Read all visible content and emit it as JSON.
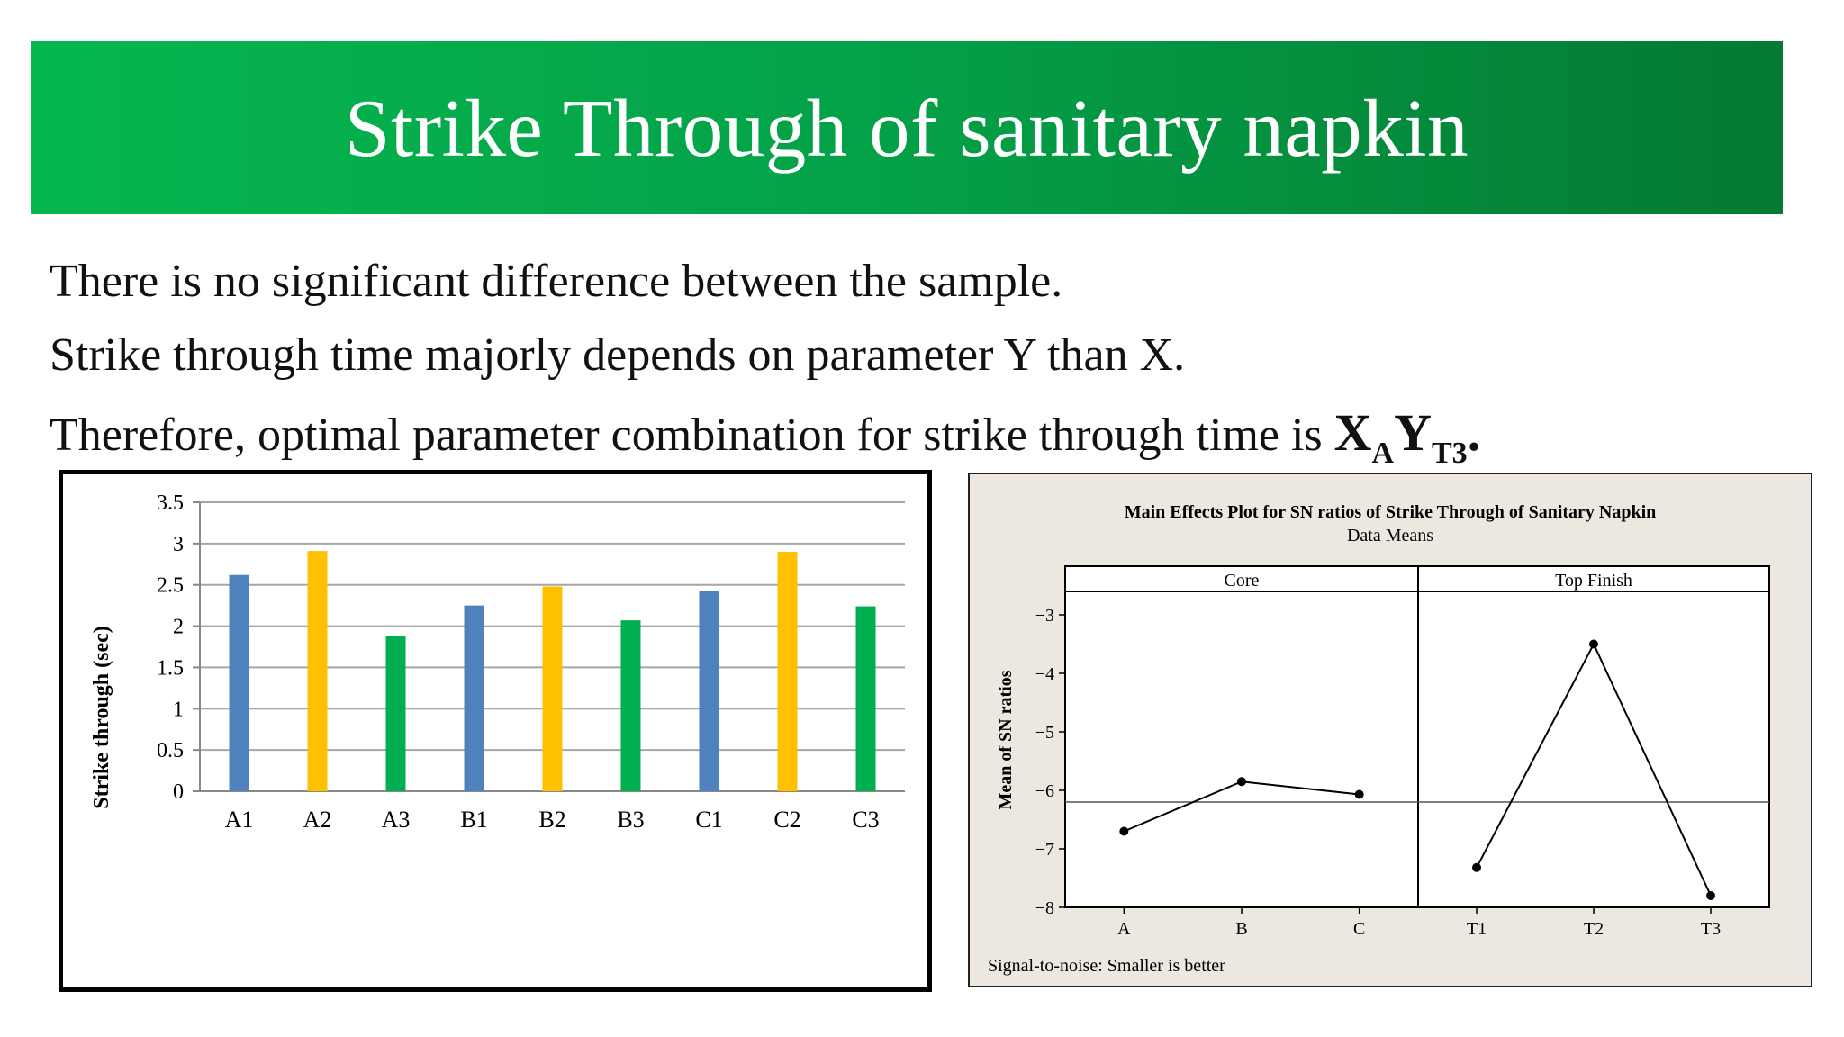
{
  "slide": {
    "title": "Strike Through of sanitary napkin",
    "lines": [
      "There is no significant difference between the sample.",
      "Strike through time majorly depends on parameter Y than X.",
      "Therefore, optimal parameter combination for strike through time  is "
    ],
    "combo": {
      "x": "X",
      "x_sub": "A",
      "y": "Y",
      "y_sub": "T3",
      "end": "."
    }
  },
  "colors": {
    "title_start": "#06b74f",
    "title_end": "#047a33",
    "blue": "#4f81bd",
    "yellow": "#ffc000",
    "green": "#00b050",
    "panel_bg": "#ece8e0"
  },
  "chart_data": [
    {
      "type": "bar",
      "title": "",
      "ylabel": "Strike through (sec)",
      "xlabel": "",
      "categories": [
        "A1",
        "A2",
        "A3",
        "B1",
        "B2",
        "B3",
        "C1",
        "C2",
        "C3"
      ],
      "values": [
        2.62,
        2.91,
        1.88,
        2.25,
        2.48,
        2.07,
        2.43,
        2.9,
        2.24
      ],
      "bar_colors": [
        "#4f81bd",
        "#ffc000",
        "#00b050",
        "#4f81bd",
        "#ffc000",
        "#00b050",
        "#4f81bd",
        "#ffc000",
        "#00b050"
      ],
      "ylim": [
        0,
        3.5
      ],
      "yticks": [
        "0",
        "0.5",
        "1",
        "1.5",
        "2",
        "2.5",
        "3",
        "3.5"
      ],
      "grid": true
    },
    {
      "type": "line",
      "title": "Main Effects Plot for SN ratios of Strike Through of Sanitary Napkin",
      "subtitle": "Data Means",
      "ylabel": "Mean of SN ratios",
      "footer": "Signal-to-noise: Smaller is better",
      "ylim": [
        -8,
        -2.6
      ],
      "yticks": [
        "-3",
        "-4",
        "-5",
        "-6",
        "-7",
        "-8"
      ],
      "reference_line": -6.2,
      "panels": [
        {
          "name": "Core",
          "x": [
            "A",
            "B",
            "C"
          ],
          "values": [
            -6.7,
            -5.85,
            -6.07
          ]
        },
        {
          "name": "Top Finish",
          "x": [
            "T1",
            "T2",
            "T3"
          ],
          "values": [
            -7.32,
            -3.5,
            -7.8
          ]
        }
      ]
    }
  ]
}
